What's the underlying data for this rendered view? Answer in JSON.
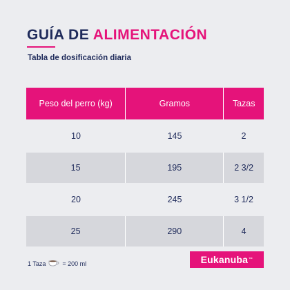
{
  "title": {
    "part1": "GUÍA DE",
    "part2": "ALIMENTACIÓN"
  },
  "subtitle": "Tabla de dosificación diaria",
  "table": {
    "headers": [
      "Peso del perro (kg)",
      "Gramos",
      "Tazas"
    ],
    "rows": [
      [
        "10",
        "145",
        "2"
      ],
      [
        "15",
        "195",
        "2  3/2"
      ],
      [
        "20",
        "245",
        "3  1/2"
      ],
      [
        "25",
        "290",
        "4"
      ]
    ]
  },
  "footer": {
    "left": "1 Taza",
    "right": "= 200 ml",
    "cup_icon": "cup-icon"
  },
  "brand": {
    "name": "Eukanuba",
    "mark": "™"
  },
  "colors": {
    "accent": "#e5137a",
    "navy": "#1e2a5a",
    "background": "#ecedf0",
    "row_shade": "#d6d7dc"
  }
}
